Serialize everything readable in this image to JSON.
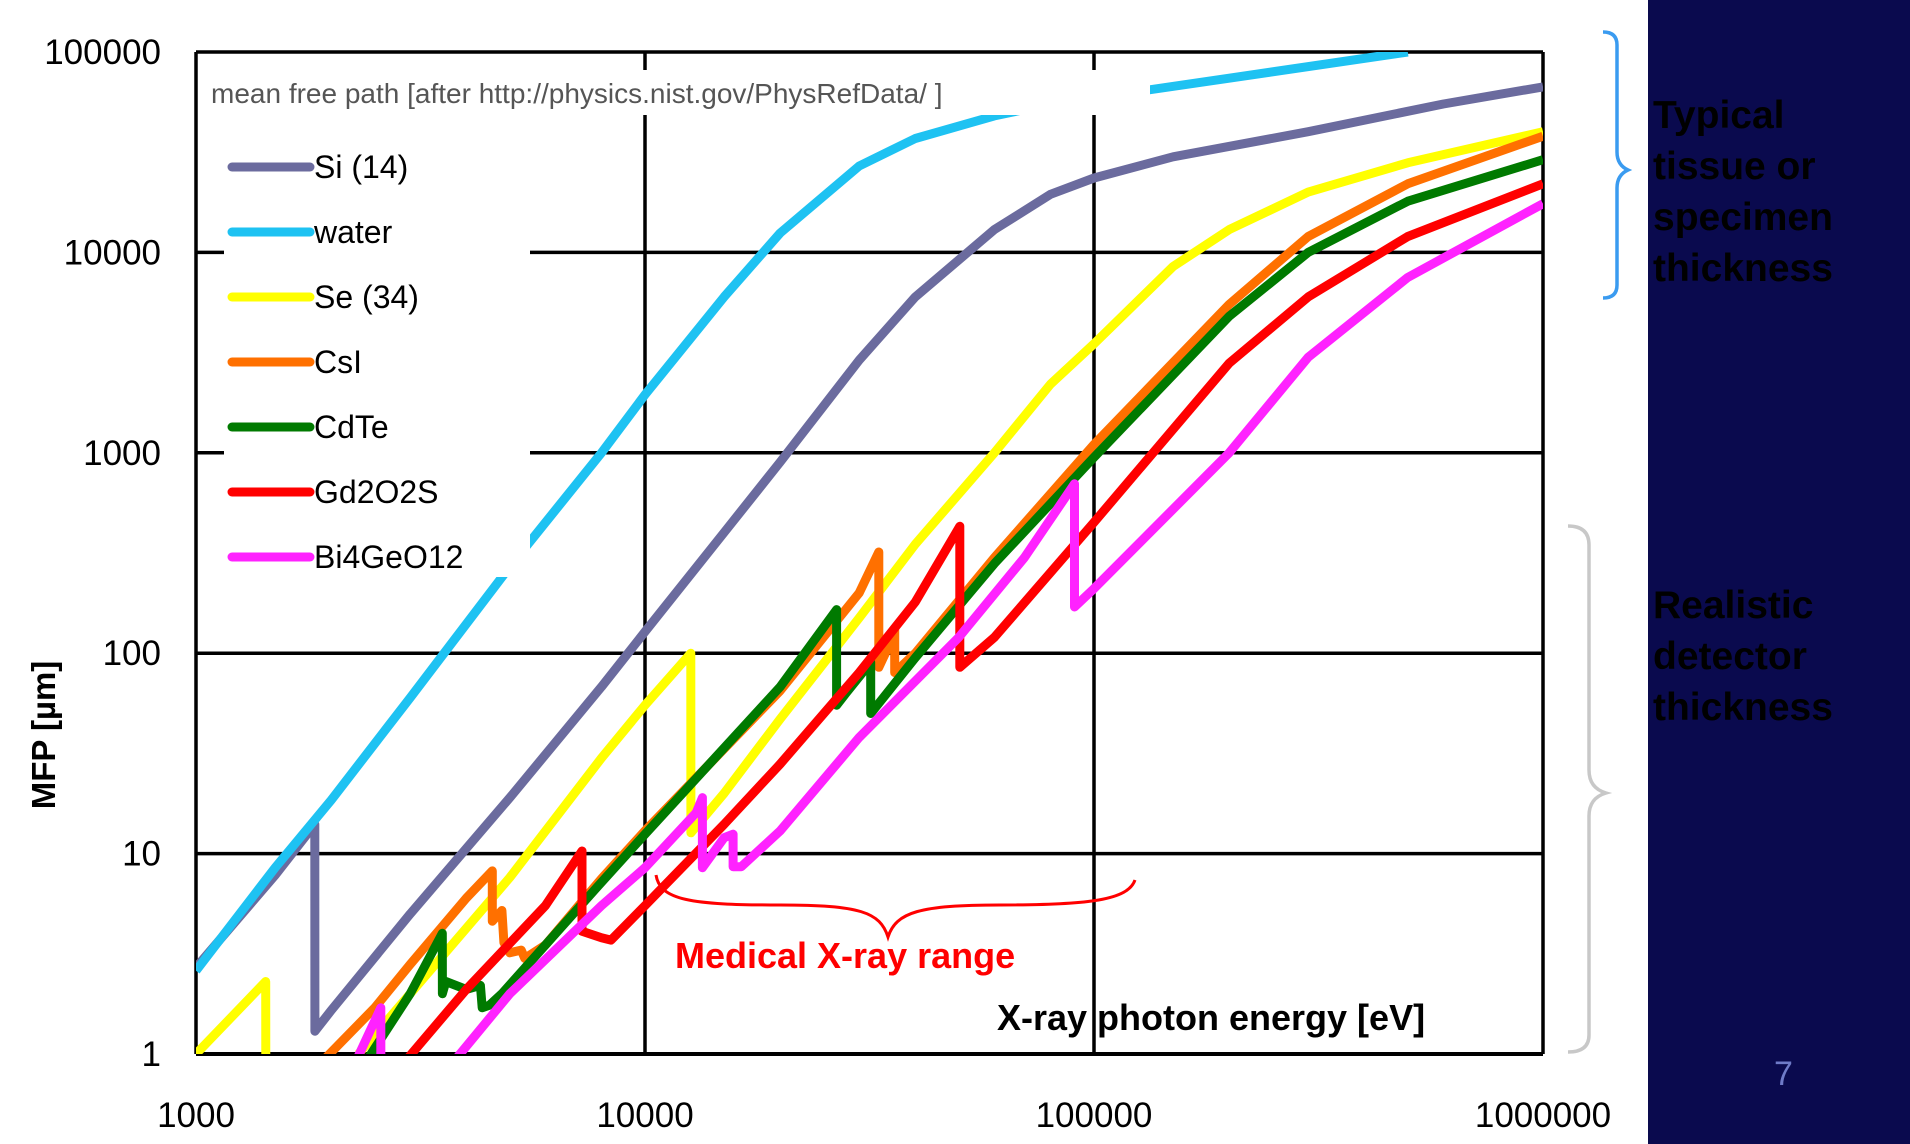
{
  "colors": {
    "sidebar_bg": "#0a0a4e",
    "typical_text": "#3a9bf0",
    "realistic_text": "#ffffff",
    "medical_range": "#ff0000",
    "grid": "#000000"
  },
  "sidebar": {
    "typical_label": "Typical\ntissue or\nspecimen\nthickness",
    "realistic_label": "Realistic\ndetector\nthickness",
    "page_number": "7"
  },
  "chart_data": {
    "type": "line",
    "xscale": "log",
    "yscale": "log",
    "xlim": [
      1000,
      1000000
    ],
    "ylim": [
      1,
      100000
    ],
    "xticks": [
      "1000",
      "10000",
      "100000",
      "1000000"
    ],
    "yticks": [
      "1",
      "10",
      "100",
      "1000",
      "10000",
      "100000"
    ],
    "xlabel": "X-ray photon energy [eV]",
    "ylabel": "MFP [µm]",
    "annotation": "mean free path [after http://physics.nist.gov/PhysRefData/ ]",
    "medical_range_label": "Medical X-ray range",
    "medical_range_x": [
      10000,
      120000
    ],
    "legend_position": "upper-left",
    "grid": true,
    "series": [
      {
        "name": "Si (14)",
        "color": "#6b6b9e",
        "points": [
          [
            1000,
            2.7
          ],
          [
            1500,
            7.8
          ],
          [
            1839,
            14
          ],
          [
            1839.5,
            1.3
          ],
          [
            2000,
            1.65
          ],
          [
            3000,
            5
          ],
          [
            5000,
            19
          ],
          [
            8000,
            68
          ],
          [
            10000,
            128
          ],
          [
            15000,
            400
          ],
          [
            20000,
            900
          ],
          [
            30000,
            2900
          ],
          [
            40000,
            6000
          ],
          [
            60000,
            13000
          ],
          [
            80000,
            19500
          ],
          [
            100000,
            23500
          ],
          [
            150000,
            30000
          ],
          [
            300000,
            40000
          ],
          [
            600000,
            55000
          ],
          [
            1000000,
            67000
          ]
        ]
      },
      {
        "name": "water",
        "color": "#1ec2f2",
        "points": [
          [
            1000,
            2.6
          ],
          [
            1500,
            8.5
          ],
          [
            2000,
            18.5
          ],
          [
            3000,
            60
          ],
          [
            5000,
            270
          ],
          [
            8000,
            1000
          ],
          [
            10000,
            1950
          ],
          [
            15000,
            6000
          ],
          [
            20000,
            12500
          ],
          [
            30000,
            27000
          ],
          [
            40000,
            37000
          ],
          [
            60000,
            48000
          ],
          [
            80000,
            55000
          ],
          [
            100000,
            59000
          ],
          [
            200000,
            74000
          ],
          [
            500000,
            100000
          ]
        ]
      },
      {
        "name": "Se (34)",
        "color": "#ffff00",
        "points": [
          [
            1000,
            1
          ],
          [
            1430,
            2.3
          ],
          [
            1431,
            0.3
          ]
        ],
        "points2": [
          [
            2300,
            1
          ],
          [
            3000,
            2
          ],
          [
            5000,
            7.6
          ],
          [
            8000,
            30
          ],
          [
            10000,
            55
          ],
          [
            12650,
            100
          ],
          [
            12651,
            12.7
          ],
          [
            15000,
            20
          ],
          [
            20000,
            47
          ],
          [
            30000,
            150
          ],
          [
            40000,
            350
          ],
          [
            60000,
            1000
          ],
          [
            80000,
            2200
          ],
          [
            100000,
            3500
          ],
          [
            150000,
            8500
          ],
          [
            200000,
            13000
          ],
          [
            300000,
            20000
          ],
          [
            500000,
            28000
          ],
          [
            1000000,
            40000
          ]
        ]
      },
      {
        "name": "CsI",
        "color": "#ff7000",
        "points": [
          [
            1800,
            0.8
          ],
          [
            2500,
            1.7
          ],
          [
            3000,
            2.8
          ],
          [
            4000,
            6
          ],
          [
            4570,
            8.2
          ],
          [
            4571,
            4.6
          ],
          [
            4800,
            5.2
          ],
          [
            4850,
            3.6
          ],
          [
            5000,
            3.2
          ],
          [
            5300,
            3.3
          ],
          [
            5400,
            3
          ],
          [
            6000,
            3.5
          ],
          [
            8000,
            7.5
          ],
          [
            10000,
            13
          ],
          [
            20000,
            65
          ],
          [
            30000,
            200
          ],
          [
            33170,
            320
          ],
          [
            33171,
            85
          ],
          [
            35000,
            110
          ],
          [
            35980,
            130
          ],
          [
            35981,
            80
          ],
          [
            40000,
            100
          ],
          [
            60000,
            300
          ],
          [
            100000,
            1100
          ],
          [
            200000,
            5500
          ],
          [
            300000,
            12000
          ],
          [
            500000,
            22000
          ],
          [
            1000000,
            38000
          ]
        ]
      },
      {
        "name": "CdTe",
        "color": "#007a00",
        "points": [
          [
            2300,
            0.8
          ],
          [
            3000,
            2
          ],
          [
            3537,
            4
          ],
          [
            3538,
            2
          ],
          [
            3600,
            2.3
          ],
          [
            4000,
            2.1
          ],
          [
            4300,
            2.2
          ],
          [
            4340,
            1.7
          ],
          [
            4500,
            1.75
          ],
          [
            4800,
            2
          ],
          [
            6000,
            3.5
          ],
          [
            8000,
            7.2
          ],
          [
            10000,
            12.5
          ],
          [
            20000,
            68
          ],
          [
            26710,
            165
          ],
          [
            26711,
            55
          ],
          [
            28000,
            63
          ],
          [
            31810,
            90
          ],
          [
            31811,
            50
          ],
          [
            40000,
            95
          ],
          [
            60000,
            280
          ],
          [
            100000,
            950
          ],
          [
            200000,
            4800
          ],
          [
            300000,
            10000
          ],
          [
            500000,
            18000
          ],
          [
            1000000,
            29000
          ]
        ]
      },
      {
        "name": "Gd2O2S",
        "color": "#ff0000",
        "points": [
          [
            2900,
            0.9
          ],
          [
            4000,
            2.1
          ],
          [
            6000,
            5.5
          ],
          [
            7240,
            10.3
          ],
          [
            7241,
            4.1
          ],
          [
            8000,
            3.8
          ],
          [
            8400,
            3.7
          ],
          [
            10000,
            5.5
          ],
          [
            15000,
            14
          ],
          [
            20000,
            28
          ],
          [
            30000,
            80
          ],
          [
            40000,
            180
          ],
          [
            50240,
            430
          ],
          [
            50241,
            85
          ],
          [
            60000,
            120
          ],
          [
            100000,
            450
          ],
          [
            200000,
            2800
          ],
          [
            300000,
            6000
          ],
          [
            500000,
            12000
          ],
          [
            1000000,
            22000
          ]
        ]
      },
      {
        "name": "Bi4GeO12",
        "color": "#ff22ff",
        "points": [
          [
            1800,
            0.3
          ],
          [
            2580,
            1.7
          ],
          [
            2581,
            0.5
          ]
        ],
        "points2": [
          [
            3800,
            0.95
          ],
          [
            5000,
            2
          ],
          [
            8000,
            5.5
          ],
          [
            10000,
            8.5
          ],
          [
            13000,
            16
          ],
          [
            13420,
            19
          ],
          [
            13421,
            8.5
          ],
          [
            15000,
            12
          ],
          [
            15710,
            12.5
          ],
          [
            15711,
            8.6
          ],
          [
            16390,
            8.6
          ],
          [
            20000,
            13
          ],
          [
            30000,
            38
          ],
          [
            50000,
            120
          ],
          [
            70000,
            300
          ],
          [
            90500,
            700
          ],
          [
            90501,
            170
          ],
          [
            100000,
            210
          ],
          [
            200000,
            1000
          ],
          [
            300000,
            3000
          ],
          [
            500000,
            7500
          ],
          [
            1000000,
            17500
          ]
        ]
      }
    ]
  }
}
